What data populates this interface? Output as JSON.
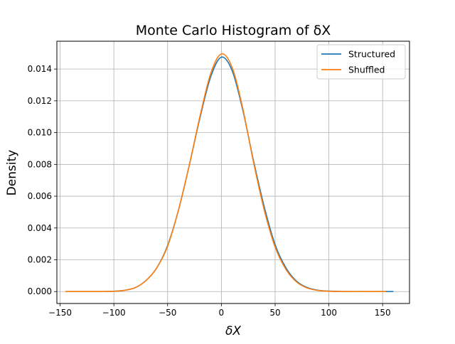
{
  "chart_data": {
    "type": "line",
    "title": "Monte Carlo Histogram of δX",
    "xlabel": "δX",
    "ylabel": "Density",
    "xlim": [
      -153,
      175
    ],
    "ylim": [
      -0.00075,
      0.01575
    ],
    "xticks": [
      -150,
      -100,
      -50,
      0,
      50,
      100,
      150
    ],
    "xtick_labels": [
      "−150",
      "−100",
      "−50",
      "0",
      "50",
      "100",
      "150"
    ],
    "yticks": [
      0.0,
      0.002,
      0.004,
      0.006,
      0.008,
      0.01,
      0.012,
      0.014
    ],
    "ytick_labels": [
      "0.000",
      "0.002",
      "0.004",
      "0.006",
      "0.008",
      "0.010",
      "0.012",
      "0.014"
    ],
    "grid": true,
    "legend_position": "top-right",
    "series": [
      {
        "name": "Structured",
        "color": "#1f77b4",
        "x": [
          -145,
          -130,
          -120,
          -110,
          -100,
          -90,
          -80,
          -70,
          -60,
          -50,
          -40,
          -30,
          -20,
          -10,
          0,
          10,
          20,
          30,
          40,
          50,
          60,
          70,
          80,
          90,
          100,
          110,
          120,
          130,
          140,
          150,
          160
        ],
        "y": [
          0.0,
          0.0,
          0.0,
          3e-06,
          2e-05,
          8e-05,
          0.00025,
          0.0007,
          0.0015,
          0.0029,
          0.0051,
          0.0079,
          0.0109,
          0.0135,
          0.01475,
          0.0139,
          0.0114,
          0.0082,
          0.0053,
          0.00295,
          0.0015,
          0.00065,
          0.00025,
          8e-05,
          3e-05,
          8e-06,
          2e-06,
          0.0,
          0.0,
          0.0,
          0.0
        ]
      },
      {
        "name": "Shuffled",
        "color": "#ff7f0e",
        "x": [
          -145,
          -130,
          -120,
          -110,
          -100,
          -90,
          -80,
          -70,
          -60,
          -50,
          -40,
          -30,
          -20,
          -10,
          0,
          10,
          20,
          30,
          40,
          50,
          60,
          70,
          80,
          90,
          100,
          110,
          120,
          130,
          140,
          153
        ],
        "y": [
          0.0,
          0.0,
          0.0,
          3e-06,
          2e-05,
          8e-05,
          0.00025,
          0.0007,
          0.0015,
          0.00285,
          0.0051,
          0.0079,
          0.011,
          0.0137,
          0.01495,
          0.0141,
          0.0115,
          0.0081,
          0.0051,
          0.0028,
          0.0014,
          0.0006,
          0.00022,
          7e-05,
          2e-05,
          5e-06,
          0.0,
          0.0,
          0.0,
          0.0
        ]
      }
    ]
  }
}
